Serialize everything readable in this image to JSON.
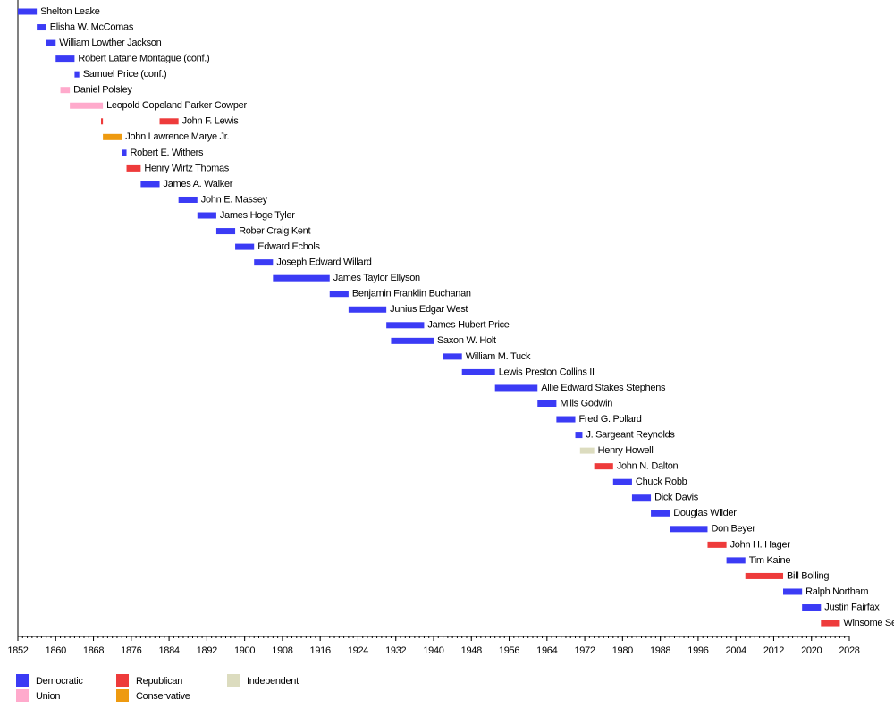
{
  "chart_data": {
    "type": "timeline",
    "xlim": [
      1852,
      2028
    ],
    "xticks": [
      1852,
      1860,
      1868,
      1876,
      1884,
      1892,
      1900,
      1908,
      1916,
      1924,
      1932,
      1940,
      1948,
      1956,
      1964,
      1972,
      1980,
      1988,
      1996,
      2004,
      2012,
      2020,
      2028
    ],
    "parties": [
      {
        "name": "Democratic",
        "color": "#3b3bf5"
      },
      {
        "name": "Union",
        "color": "#ffaacc"
      },
      {
        "name": "Republican",
        "color": "#ee3b3b"
      },
      {
        "name": "Conservative",
        "color": "#ee9a10"
      },
      {
        "name": "Independent",
        "color": "#dcdcbf"
      }
    ],
    "rows": [
      {
        "label": "Shelton Leake",
        "party": "Democratic",
        "spans": [
          [
            1852,
            1856
          ]
        ]
      },
      {
        "label": "Elisha W. McComas",
        "party": "Democratic",
        "spans": [
          [
            1856,
            1858
          ]
        ]
      },
      {
        "label": "William Lowther Jackson",
        "party": "Democratic",
        "spans": [
          [
            1858,
            1860
          ]
        ]
      },
      {
        "label": "Robert Latane Montague (conf.)",
        "party": "Democratic",
        "spans": [
          [
            1860,
            1864
          ]
        ]
      },
      {
        "label": "Samuel Price (conf.)",
        "party": "Democratic",
        "spans": [
          [
            1864,
            1865
          ]
        ]
      },
      {
        "label": "Daniel Polsley",
        "party": "Union",
        "spans": [
          [
            1861,
            1863
          ]
        ]
      },
      {
        "label": "Leopold Copeland Parker Cowper",
        "party": "Union",
        "spans": [
          [
            1863,
            1870
          ]
        ]
      },
      {
        "label": "John F. Lewis",
        "party": "Republican",
        "spans": [
          [
            1869.6,
            1870
          ],
          [
            1882,
            1886
          ]
        ]
      },
      {
        "label": "John Lawrence Marye Jr.",
        "party": "Conservative",
        "spans": [
          [
            1870,
            1874
          ]
        ]
      },
      {
        "label": "Robert E. Withers",
        "party": "Democratic",
        "spans": [
          [
            1874,
            1875
          ]
        ]
      },
      {
        "label": "Henry Wirtz Thomas",
        "party": "Republican",
        "spans": [
          [
            1875,
            1878
          ]
        ]
      },
      {
        "label": "James A. Walker",
        "party": "Democratic",
        "spans": [
          [
            1878,
            1882
          ]
        ]
      },
      {
        "label": "John E. Massey",
        "party": "Democratic",
        "spans": [
          [
            1886,
            1890
          ]
        ]
      },
      {
        "label": "James Hoge Tyler",
        "party": "Democratic",
        "spans": [
          [
            1890,
            1894
          ]
        ]
      },
      {
        "label": "Rober Craig Kent",
        "party": "Democratic",
        "spans": [
          [
            1894,
            1898
          ]
        ]
      },
      {
        "label": "Edward Echols",
        "party": "Democratic",
        "spans": [
          [
            1898,
            1902
          ]
        ]
      },
      {
        "label": "Joseph Edward Willard",
        "party": "Democratic",
        "spans": [
          [
            1902,
            1906
          ]
        ]
      },
      {
        "label": "James Taylor Ellyson",
        "party": "Democratic",
        "spans": [
          [
            1906,
            1918
          ]
        ]
      },
      {
        "label": "Benjamin Franklin Buchanan",
        "party": "Democratic",
        "spans": [
          [
            1918,
            1922
          ]
        ]
      },
      {
        "label": "Junius Edgar West",
        "party": "Democratic",
        "spans": [
          [
            1922,
            1930
          ]
        ]
      },
      {
        "label": "James Hubert Price",
        "party": "Democratic",
        "spans": [
          [
            1930,
            1938
          ]
        ]
      },
      {
        "label": "Saxon W. Holt",
        "party": "Democratic",
        "spans": [
          [
            1931,
            1940
          ]
        ]
      },
      {
        "label": "William M. Tuck",
        "party": "Democratic",
        "spans": [
          [
            1942,
            1946
          ]
        ]
      },
      {
        "label": "Lewis Preston Collins II",
        "party": "Democratic",
        "spans": [
          [
            1946,
            1953
          ]
        ]
      },
      {
        "label": "Allie Edward Stakes Stephens",
        "party": "Democratic",
        "spans": [
          [
            1953,
            1962
          ]
        ]
      },
      {
        "label": "Mills Godwin",
        "party": "Democratic",
        "spans": [
          [
            1962,
            1966
          ]
        ]
      },
      {
        "label": "Fred G. Pollard",
        "party": "Democratic",
        "spans": [
          [
            1966,
            1970
          ]
        ]
      },
      {
        "label": "J. Sargeant Reynolds",
        "party": "Democratic",
        "spans": [
          [
            1970,
            1971.5
          ]
        ]
      },
      {
        "label": "Henry Howell",
        "party": "Independent",
        "spans": [
          [
            1971,
            1974
          ]
        ]
      },
      {
        "label": "John N. Dalton",
        "party": "Republican",
        "spans": [
          [
            1974,
            1978
          ]
        ]
      },
      {
        "label": "Chuck Robb",
        "party": "Democratic",
        "spans": [
          [
            1978,
            1982
          ]
        ]
      },
      {
        "label": "Dick Davis",
        "party": "Democratic",
        "spans": [
          [
            1982,
            1986
          ]
        ]
      },
      {
        "label": "Douglas Wilder",
        "party": "Democratic",
        "spans": [
          [
            1986,
            1990
          ]
        ]
      },
      {
        "label": "Don Beyer",
        "party": "Democratic",
        "spans": [
          [
            1990,
            1998
          ]
        ]
      },
      {
        "label": "John H. Hager",
        "party": "Republican",
        "spans": [
          [
            1998,
            2002
          ]
        ]
      },
      {
        "label": "Tim Kaine",
        "party": "Democratic",
        "spans": [
          [
            2002,
            2006
          ]
        ]
      },
      {
        "label": "Bill Bolling",
        "party": "Republican",
        "spans": [
          [
            2006,
            2014
          ]
        ]
      },
      {
        "label": "Ralph Northam",
        "party": "Democratic",
        "spans": [
          [
            2014,
            2018
          ]
        ]
      },
      {
        "label": "Justin Fairfax",
        "party": "Democratic",
        "spans": [
          [
            2018,
            2022
          ]
        ]
      },
      {
        "label": "Winsome Se",
        "party": "Republican",
        "spans": [
          [
            2022,
            2026
          ]
        ]
      }
    ]
  }
}
